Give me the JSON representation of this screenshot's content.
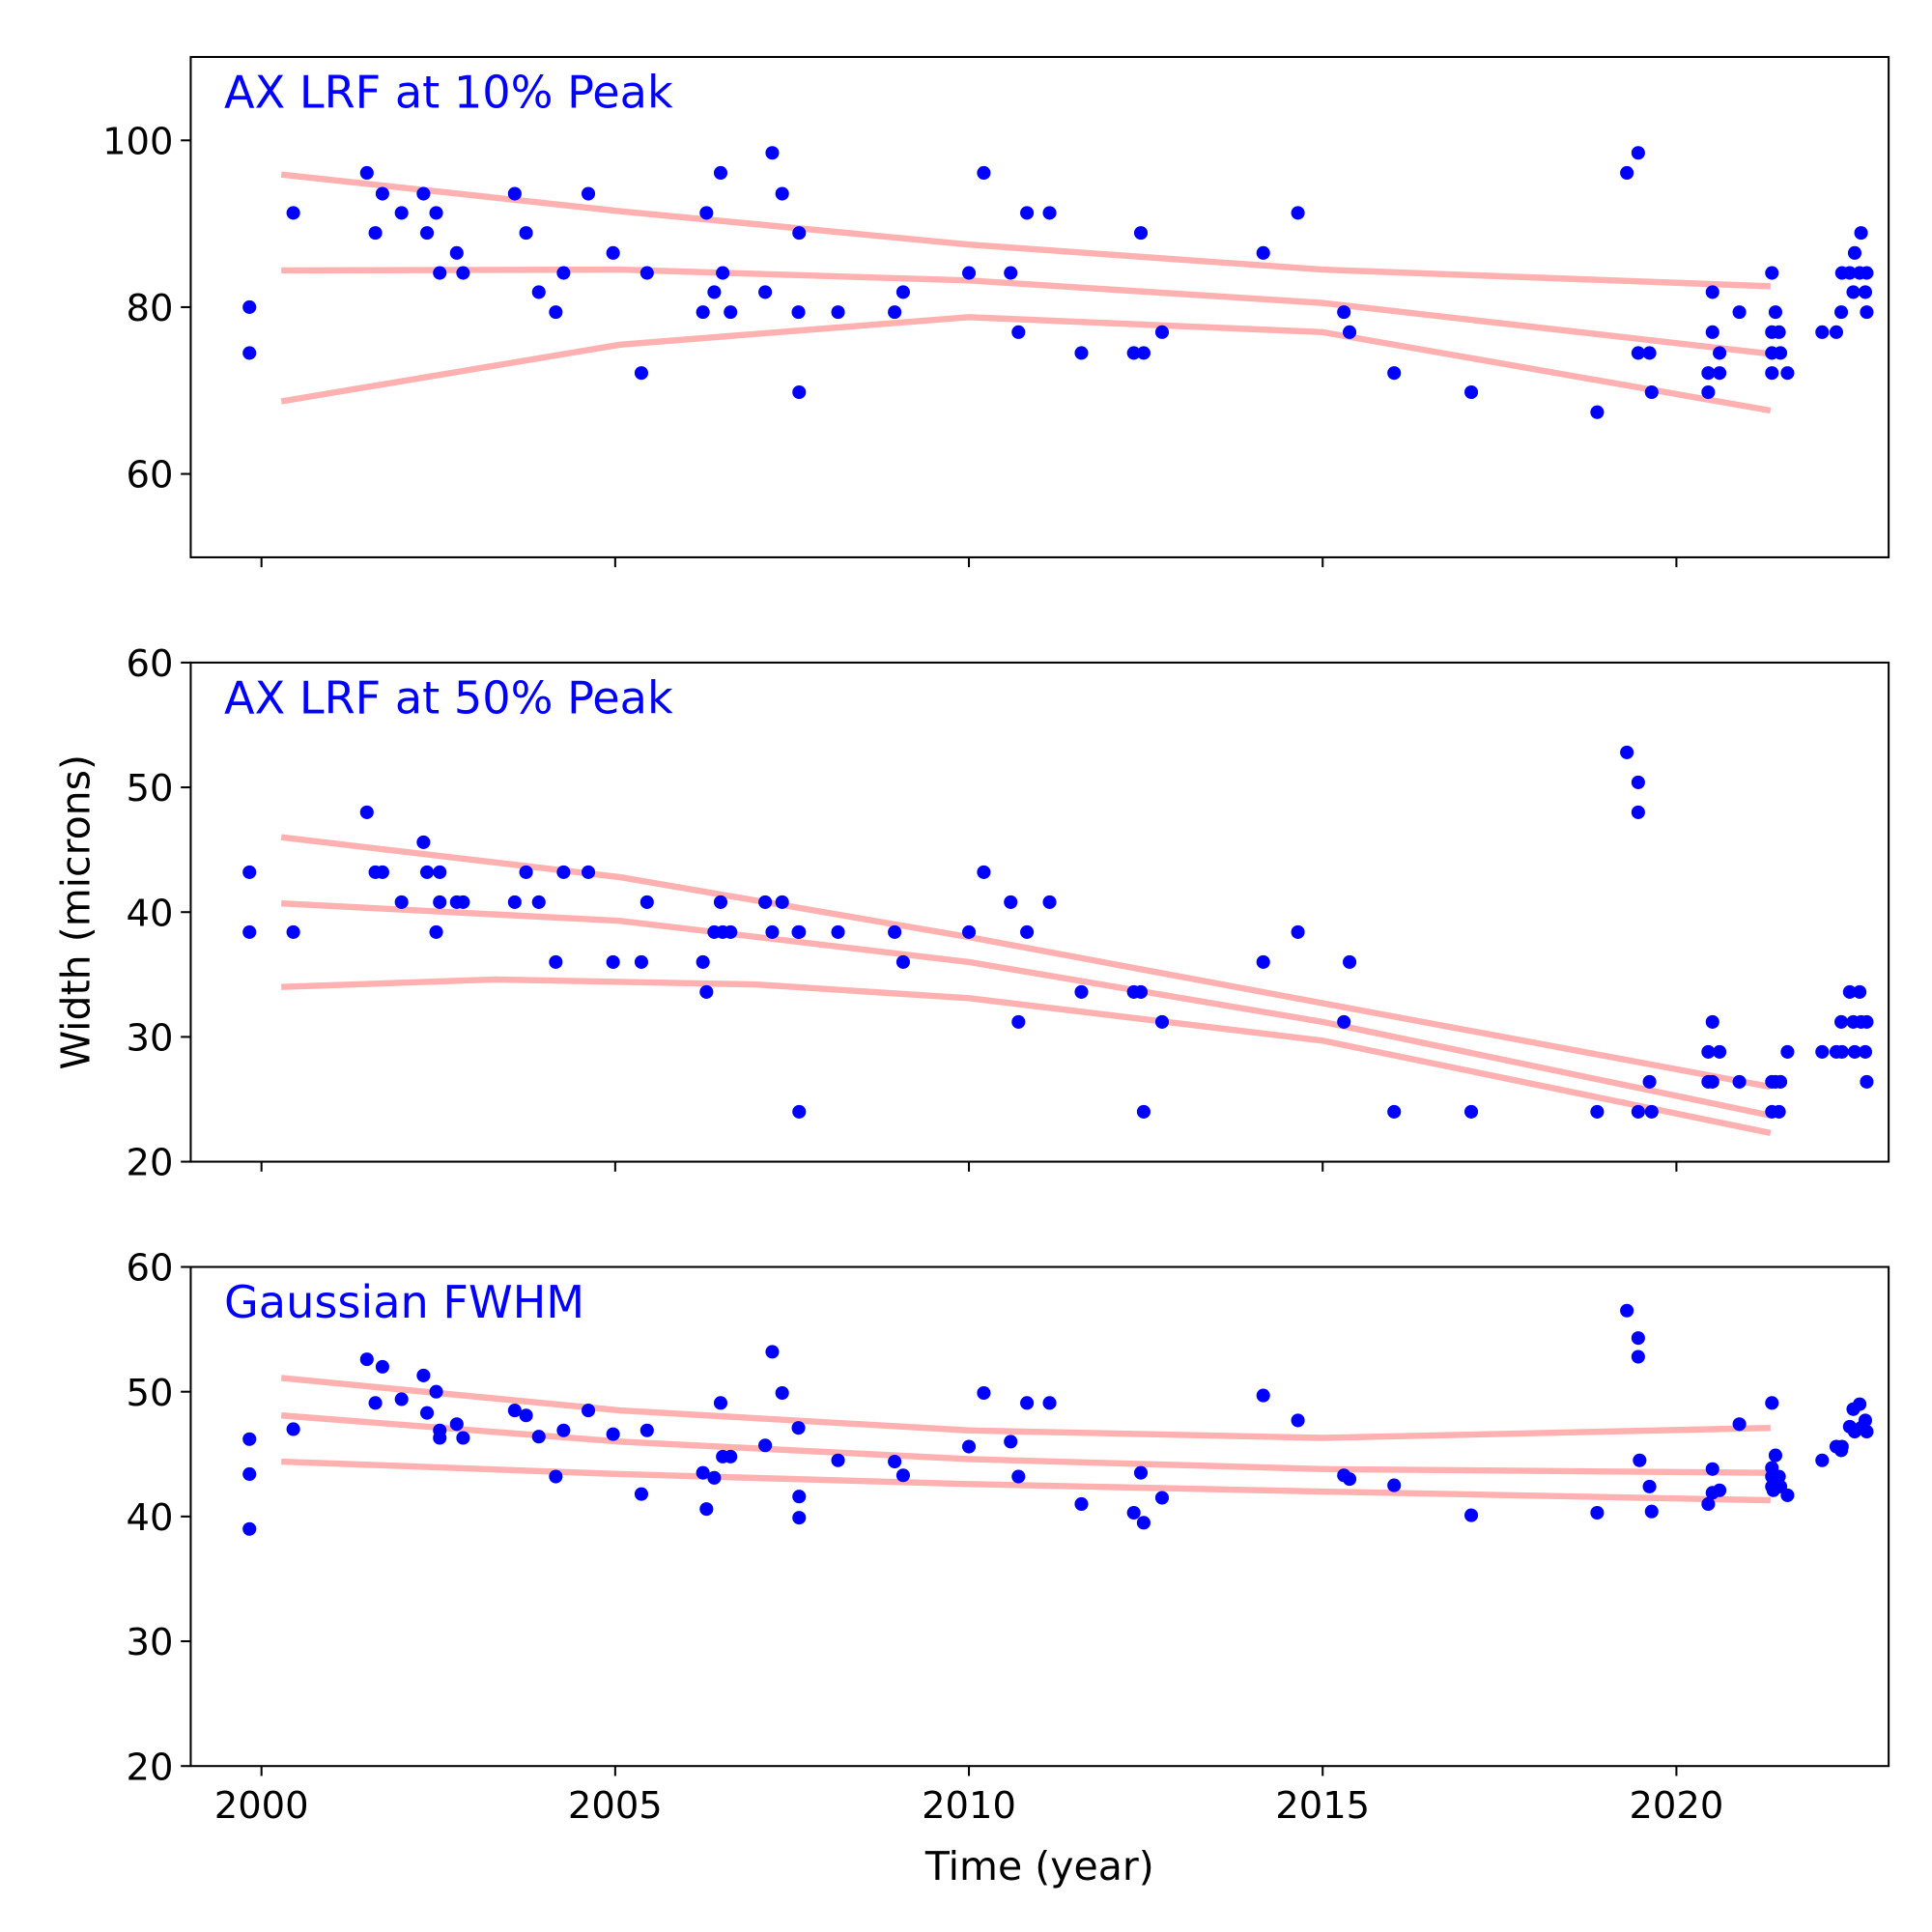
{
  "chart_data": [
    {
      "type": "scatter",
      "title": "AX LRF at 10% Peak",
      "xlim": [
        1999.0,
        2023.0
      ],
      "ylim": [
        50,
        110
      ],
      "yticks": [
        "60",
        "80",
        "100"
      ],
      "xticks": [
        "2000",
        "2005",
        "2010",
        "2015",
        "2020"
      ],
      "points": [
        [
          1999.83,
          80.0
        ],
        [
          1999.83,
          74.5
        ],
        [
          2000.45,
          91.3
        ],
        [
          2001.49,
          96.1
        ],
        [
          2001.61,
          88.9
        ],
        [
          2001.71,
          93.6
        ],
        [
          2001.98,
          91.3
        ],
        [
          2002.29,
          93.6
        ],
        [
          2002.34,
          88.9
        ],
        [
          2002.47,
          91.3
        ],
        [
          2002.52,
          84.1
        ],
        [
          2002.76,
          86.5
        ],
        [
          2002.85,
          84.1
        ],
        [
          2003.58,
          93.6
        ],
        [
          2003.74,
          88.9
        ],
        [
          2003.92,
          81.8
        ],
        [
          2004.16,
          79.4
        ],
        [
          2004.27,
          84.1
        ],
        [
          2004.62,
          93.6
        ],
        [
          2004.97,
          86.5
        ],
        [
          2005.37,
          72.1
        ],
        [
          2005.45,
          84.1
        ],
        [
          2006.24,
          79.4
        ],
        [
          2006.29,
          91.3
        ],
        [
          2006.4,
          81.8
        ],
        [
          2006.49,
          96.1
        ],
        [
          2006.52,
          84.1
        ],
        [
          2006.63,
          79.4
        ],
        [
          2007.12,
          81.8
        ],
        [
          2007.22,
          98.5
        ],
        [
          2007.36,
          93.6
        ],
        [
          2007.6,
          88.9
        ],
        [
          2007.59,
          79.4
        ],
        [
          2007.6,
          69.8
        ],
        [
          2008.15,
          79.4
        ],
        [
          2008.95,
          79.4
        ],
        [
          2009.07,
          81.8
        ],
        [
          2010.0,
          84.1
        ],
        [
          2010.21,
          96.1
        ],
        [
          2010.59,
          84.1
        ],
        [
          2010.7,
          77.0
        ],
        [
          2010.82,
          91.3
        ],
        [
          2011.14,
          91.3
        ],
        [
          2011.59,
          74.5
        ],
        [
          2012.33,
          74.5
        ],
        [
          2012.43,
          88.9
        ],
        [
          2012.47,
          74.5
        ],
        [
          2012.73,
          77.0
        ],
        [
          2014.16,
          86.5
        ],
        [
          2014.65,
          91.3
        ],
        [
          2015.3,
          79.4
        ],
        [
          2015.38,
          77.0
        ],
        [
          2016.01,
          72.1
        ],
        [
          2017.1,
          69.8
        ],
        [
          2018.88,
          67.4
        ],
        [
          2019.3,
          96.1
        ],
        [
          2019.46,
          98.5
        ],
        [
          2019.46,
          74.5
        ],
        [
          2019.62,
          74.5
        ],
        [
          2019.65,
          69.8
        ],
        [
          2020.45,
          69.8
        ],
        [
          2020.45,
          72.1
        ],
        [
          2020.51,
          81.8
        ],
        [
          2020.51,
          77.0
        ],
        [
          2020.61,
          74.5
        ],
        [
          2020.61,
          72.1
        ],
        [
          2020.89,
          79.4
        ],
        [
          2021.35,
          84.1
        ],
        [
          2021.35,
          77.0
        ],
        [
          2021.35,
          74.5
        ],
        [
          2021.35,
          72.1
        ],
        [
          2021.4,
          79.4
        ],
        [
          2021.45,
          77.0
        ],
        [
          2021.47,
          74.5
        ],
        [
          2021.57,
          72.1
        ],
        [
          2022.06,
          77.0
        ],
        [
          2022.26,
          77.0
        ],
        [
          2022.33,
          79.4
        ],
        [
          2022.34,
          84.1
        ],
        [
          2022.45,
          84.1
        ],
        [
          2022.5,
          81.8
        ],
        [
          2022.52,
          86.5
        ],
        [
          2022.59,
          84.1
        ],
        [
          2022.61,
          88.9
        ],
        [
          2022.67,
          81.8
        ],
        [
          2022.69,
          84.1
        ],
        [
          2022.69,
          79.4
        ]
      ],
      "fits": [
        [
          [
            2000.28,
            95.9
          ],
          [
            2005.07,
            91.5
          ],
          [
            2010.0,
            87.5
          ],
          [
            2015.0,
            84.5
          ],
          [
            2021.33,
            82.5
          ]
        ],
        [
          [
            2000.28,
            84.4
          ],
          [
            2005.07,
            84.5
          ],
          [
            2010.0,
            83.2
          ],
          [
            2015.0,
            80.5
          ],
          [
            2021.33,
            74.4
          ]
        ],
        [
          [
            2000.28,
            68.7
          ],
          [
            2005.07,
            75.5
          ],
          [
            2010.0,
            78.8
          ],
          [
            2015.0,
            77.0
          ],
          [
            2021.33,
            67.6
          ]
        ]
      ]
    },
    {
      "type": "scatter",
      "title": "AX LRF at 50% Peak",
      "ylabel": "Width (microns)",
      "xlim": [
        1999.0,
        2023.0
      ],
      "ylim": [
        20,
        60
      ],
      "yticks": [
        "20",
        "30",
        "40",
        "50",
        "60"
      ],
      "xticks": [
        "2000",
        "2005",
        "2010",
        "2015",
        "2020"
      ],
      "points": [
        [
          1999.83,
          43.2
        ],
        [
          1999.83,
          38.4
        ],
        [
          2000.45,
          38.4
        ],
        [
          2001.49,
          48.0
        ],
        [
          2001.61,
          43.2
        ],
        [
          2001.71,
          43.2
        ],
        [
          2001.98,
          40.8
        ],
        [
          2002.29,
          45.6
        ],
        [
          2002.34,
          43.2
        ],
        [
          2002.47,
          38.4
        ],
        [
          2002.52,
          43.2
        ],
        [
          2002.52,
          40.8
        ],
        [
          2002.76,
          40.8
        ],
        [
          2002.85,
          40.8
        ],
        [
          2003.58,
          40.8
        ],
        [
          2003.74,
          43.2
        ],
        [
          2003.92,
          40.8
        ],
        [
          2004.16,
          36.0
        ],
        [
          2004.27,
          43.2
        ],
        [
          2004.62,
          43.2
        ],
        [
          2004.97,
          36.0
        ],
        [
          2005.37,
          36.0
        ],
        [
          2005.45,
          40.8
        ],
        [
          2006.24,
          36.0
        ],
        [
          2006.29,
          33.6
        ],
        [
          2006.4,
          38.4
        ],
        [
          2006.49,
          40.8
        ],
        [
          2006.52,
          38.4
        ],
        [
          2006.63,
          38.4
        ],
        [
          2007.12,
          40.8
        ],
        [
          2007.22,
          38.4
        ],
        [
          2007.36,
          40.8
        ],
        [
          2007.59,
          38.4
        ],
        [
          2007.6,
          38.4
        ],
        [
          2007.6,
          24.0
        ],
        [
          2008.15,
          38.4
        ],
        [
          2008.95,
          38.4
        ],
        [
          2009.07,
          36.0
        ],
        [
          2010.0,
          38.4
        ],
        [
          2010.21,
          43.2
        ],
        [
          2010.59,
          40.8
        ],
        [
          2010.7,
          31.2
        ],
        [
          2010.82,
          38.4
        ],
        [
          2011.14,
          40.8
        ],
        [
          2011.59,
          33.6
        ],
        [
          2012.33,
          33.6
        ],
        [
          2012.43,
          33.6
        ],
        [
          2012.47,
          24.0
        ],
        [
          2012.73,
          31.2
        ],
        [
          2014.16,
          36.0
        ],
        [
          2014.65,
          38.4
        ],
        [
          2015.3,
          31.2
        ],
        [
          2015.38,
          36.0
        ],
        [
          2016.01,
          24.0
        ],
        [
          2017.1,
          24.0
        ],
        [
          2018.88,
          24.0
        ],
        [
          2019.3,
          52.8
        ],
        [
          2019.46,
          50.4
        ],
        [
          2019.46,
          48.0
        ],
        [
          2019.46,
          24.0
        ],
        [
          2019.62,
          26.4
        ],
        [
          2019.65,
          24.0
        ],
        [
          2020.45,
          28.8
        ],
        [
          2020.45,
          26.4
        ],
        [
          2020.51,
          31.2
        ],
        [
          2020.51,
          26.4
        ],
        [
          2020.61,
          28.8
        ],
        [
          2020.89,
          26.4
        ],
        [
          2021.35,
          26.4
        ],
        [
          2021.35,
          24.0
        ],
        [
          2021.4,
          26.4
        ],
        [
          2021.45,
          24.0
        ],
        [
          2021.47,
          26.4
        ],
        [
          2021.57,
          28.8
        ],
        [
          2022.06,
          28.8
        ],
        [
          2022.26,
          28.8
        ],
        [
          2022.33,
          31.2
        ],
        [
          2022.34,
          28.8
        ],
        [
          2022.45,
          33.6
        ],
        [
          2022.5,
          31.2
        ],
        [
          2022.52,
          28.8
        ],
        [
          2022.59,
          33.6
        ],
        [
          2022.61,
          31.2
        ],
        [
          2022.67,
          28.8
        ],
        [
          2022.69,
          31.2
        ],
        [
          2022.69,
          26.4
        ]
      ],
      "fits": [
        [
          [
            2000.28,
            46.0
          ],
          [
            2005.07,
            42.8
          ],
          [
            2010.0,
            38.0
          ],
          [
            2015.0,
            32.7
          ],
          [
            2021.33,
            26.0
          ]
        ],
        [
          [
            2000.28,
            40.7
          ],
          [
            2005.07,
            39.3
          ],
          [
            2010.0,
            36.0
          ],
          [
            2015.0,
            31.2
          ],
          [
            2021.33,
            23.7
          ]
        ],
        [
          [
            2000.28,
            34.0
          ],
          [
            2003.3,
            34.6
          ],
          [
            2007.0,
            34.2
          ],
          [
            2010.0,
            33.1
          ],
          [
            2015.0,
            29.7
          ],
          [
            2021.33,
            22.3
          ]
        ]
      ]
    },
    {
      "type": "scatter",
      "title": "Gaussian FWHM",
      "xlabel": "Time (year)",
      "xlim": [
        1999.0,
        2023.0
      ],
      "ylim": [
        20,
        60
      ],
      "yticks": [
        "20",
        "30",
        "40",
        "50",
        "60"
      ],
      "xticks": [
        "2000",
        "2005",
        "2010",
        "2015",
        "2020"
      ],
      "points": [
        [
          1999.83,
          46.2
        ],
        [
          1999.83,
          43.4
        ],
        [
          1999.83,
          39.0
        ],
        [
          2000.45,
          47.0
        ],
        [
          2001.49,
          52.6
        ],
        [
          2001.61,
          49.1
        ],
        [
          2001.71,
          52.0
        ],
        [
          2001.98,
          49.4
        ],
        [
          2002.29,
          51.3
        ],
        [
          2002.34,
          48.3
        ],
        [
          2002.47,
          50.0
        ],
        [
          2002.52,
          46.9
        ],
        [
          2002.52,
          46.3
        ],
        [
          2002.76,
          47.4
        ],
        [
          2002.85,
          46.3
        ],
        [
          2003.58,
          48.5
        ],
        [
          2003.74,
          48.1
        ],
        [
          2003.92,
          46.4
        ],
        [
          2004.16,
          43.2
        ],
        [
          2004.27,
          46.9
        ],
        [
          2004.62,
          48.5
        ],
        [
          2004.97,
          46.6
        ],
        [
          2005.37,
          41.8
        ],
        [
          2005.45,
          46.9
        ],
        [
          2006.24,
          43.5
        ],
        [
          2006.29,
          40.6
        ],
        [
          2006.4,
          43.1
        ],
        [
          2006.49,
          49.1
        ],
        [
          2006.52,
          44.8
        ],
        [
          2006.63,
          44.8
        ],
        [
          2007.12,
          45.7
        ],
        [
          2007.22,
          53.2
        ],
        [
          2007.36,
          49.9
        ],
        [
          2007.59,
          47.1
        ],
        [
          2007.6,
          41.6
        ],
        [
          2007.6,
          39.9
        ],
        [
          2008.15,
          44.5
        ],
        [
          2008.95,
          44.4
        ],
        [
          2009.07,
          43.3
        ],
        [
          2010.0,
          45.6
        ],
        [
          2010.21,
          49.9
        ],
        [
          2010.59,
          46.0
        ],
        [
          2010.7,
          43.2
        ],
        [
          2010.82,
          49.1
        ],
        [
          2011.14,
          49.1
        ],
        [
          2011.59,
          41.0
        ],
        [
          2012.33,
          40.3
        ],
        [
          2012.43,
          43.5
        ],
        [
          2012.47,
          39.5
        ],
        [
          2012.73,
          41.5
        ],
        [
          2014.16,
          49.7
        ],
        [
          2014.65,
          47.7
        ],
        [
          2015.3,
          43.3
        ],
        [
          2015.38,
          43.0
        ],
        [
          2016.01,
          42.5
        ],
        [
          2017.1,
          40.1
        ],
        [
          2018.88,
          40.3
        ],
        [
          2019.3,
          56.5
        ],
        [
          2019.46,
          54.3
        ],
        [
          2019.46,
          52.8
        ],
        [
          2019.48,
          44.5
        ],
        [
          2019.62,
          42.4
        ],
        [
          2019.65,
          40.4
        ],
        [
          2020.45,
          41.0
        ],
        [
          2020.51,
          43.8
        ],
        [
          2020.51,
          41.9
        ],
        [
          2020.61,
          42.1
        ],
        [
          2020.89,
          47.4
        ],
        [
          2021.35,
          49.1
        ],
        [
          2021.35,
          43.9
        ],
        [
          2021.35,
          43.2
        ],
        [
          2021.35,
          42.4
        ],
        [
          2021.37,
          42.1
        ],
        [
          2021.4,
          44.9
        ],
        [
          2021.45,
          43.2
        ],
        [
          2021.47,
          42.4
        ],
        [
          2021.57,
          41.7
        ],
        [
          2022.06,
          44.5
        ],
        [
          2022.26,
          45.6
        ],
        [
          2022.33,
          45.3
        ],
        [
          2022.34,
          45.6
        ],
        [
          2022.45,
          47.2
        ],
        [
          2022.5,
          48.6
        ],
        [
          2022.52,
          46.8
        ],
        [
          2022.59,
          49.0
        ],
        [
          2022.61,
          47.1
        ],
        [
          2022.67,
          47.7
        ],
        [
          2022.69,
          46.8
        ]
      ],
      "fits": [
        [
          [
            2000.28,
            51.1
          ],
          [
            2005.07,
            48.5
          ],
          [
            2010.0,
            46.9
          ],
          [
            2015.0,
            46.3
          ],
          [
            2021.33,
            47.1
          ]
        ],
        [
          [
            2000.28,
            48.1
          ],
          [
            2005.07,
            46.0
          ],
          [
            2010.0,
            44.6
          ],
          [
            2015.0,
            43.8
          ],
          [
            2021.33,
            43.5
          ]
        ],
        [
          [
            2000.28,
            44.4
          ],
          [
            2005.07,
            43.4
          ],
          [
            2010.0,
            42.6
          ],
          [
            2015.0,
            42.0
          ],
          [
            2021.33,
            41.3
          ]
        ]
      ]
    }
  ],
  "colors": {
    "points": "#0000ff",
    "fit": "#ffb0b0",
    "title": "#0000ff"
  }
}
